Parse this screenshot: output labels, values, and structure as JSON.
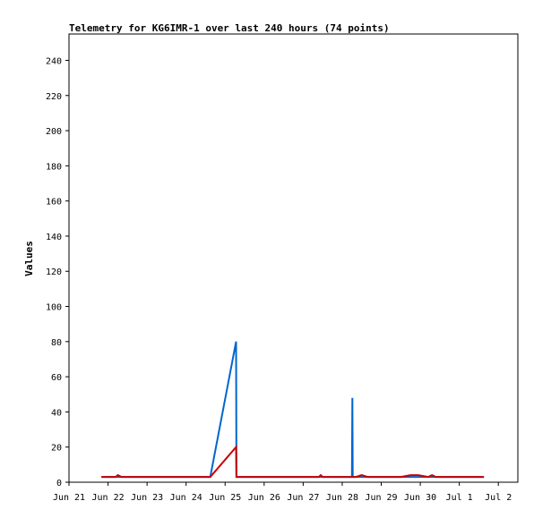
{
  "chart_data": {
    "type": "line",
    "title": "Telemetry for KG6IMR-1 over last 240 hours (74 points)",
    "xlabel": "",
    "ylabel": "Values",
    "xlim": [
      0,
      11.5
    ],
    "ylim": [
      0,
      255
    ],
    "y_ticks": [
      0,
      20,
      40,
      60,
      80,
      100,
      120,
      140,
      160,
      180,
      200,
      220,
      240
    ],
    "x_ticks": [
      {
        "value": 0,
        "label": "Jun 21"
      },
      {
        "value": 1,
        "label": "Jun 22"
      },
      {
        "value": 2,
        "label": "Jun 23"
      },
      {
        "value": 3,
        "label": "Jun 24"
      },
      {
        "value": 4,
        "label": "Jun 25"
      },
      {
        "value": 5,
        "label": "Jun 26"
      },
      {
        "value": 6,
        "label": "Jun 27"
      },
      {
        "value": 7,
        "label": "Jun 28"
      },
      {
        "value": 8,
        "label": "Jun 29"
      },
      {
        "value": 9,
        "label": "Jun 30"
      },
      {
        "value": 10,
        "label": "Jul 1"
      },
      {
        "value": 11,
        "label": "Jul 2"
      }
    ],
    "grid": false,
    "series": [
      {
        "color": "#0066cc",
        "points": [
          [
            0.83,
            3
          ],
          [
            1.5,
            3
          ],
          [
            2.5,
            3
          ],
          [
            3.4,
            3
          ],
          [
            3.62,
            3
          ],
          [
            4.28,
            80
          ],
          [
            4.29,
            3
          ],
          [
            5.5,
            3
          ],
          [
            6.5,
            3
          ],
          [
            7.25,
            3
          ],
          [
            7.26,
            48
          ],
          [
            7.27,
            3
          ],
          [
            7.6,
            3
          ],
          [
            8.5,
            3
          ],
          [
            9.5,
            3
          ],
          [
            10.63,
            3
          ]
        ]
      },
      {
        "color": "#cc0000",
        "points": [
          [
            0.83,
            3
          ],
          [
            1.2,
            3
          ],
          [
            1.25,
            4
          ],
          [
            1.35,
            3
          ],
          [
            2.5,
            3
          ],
          [
            3.62,
            3
          ],
          [
            4.28,
            20
          ],
          [
            4.29,
            3
          ],
          [
            5.5,
            3
          ],
          [
            6.4,
            3
          ],
          [
            6.45,
            4
          ],
          [
            6.5,
            3
          ],
          [
            7.35,
            3
          ],
          [
            7.5,
            4
          ],
          [
            7.65,
            3
          ],
          [
            8.5,
            3
          ],
          [
            8.75,
            4
          ],
          [
            8.95,
            4
          ],
          [
            9.2,
            3
          ],
          [
            9.3,
            4
          ],
          [
            9.4,
            3
          ],
          [
            10.63,
            3
          ]
        ]
      }
    ]
  }
}
